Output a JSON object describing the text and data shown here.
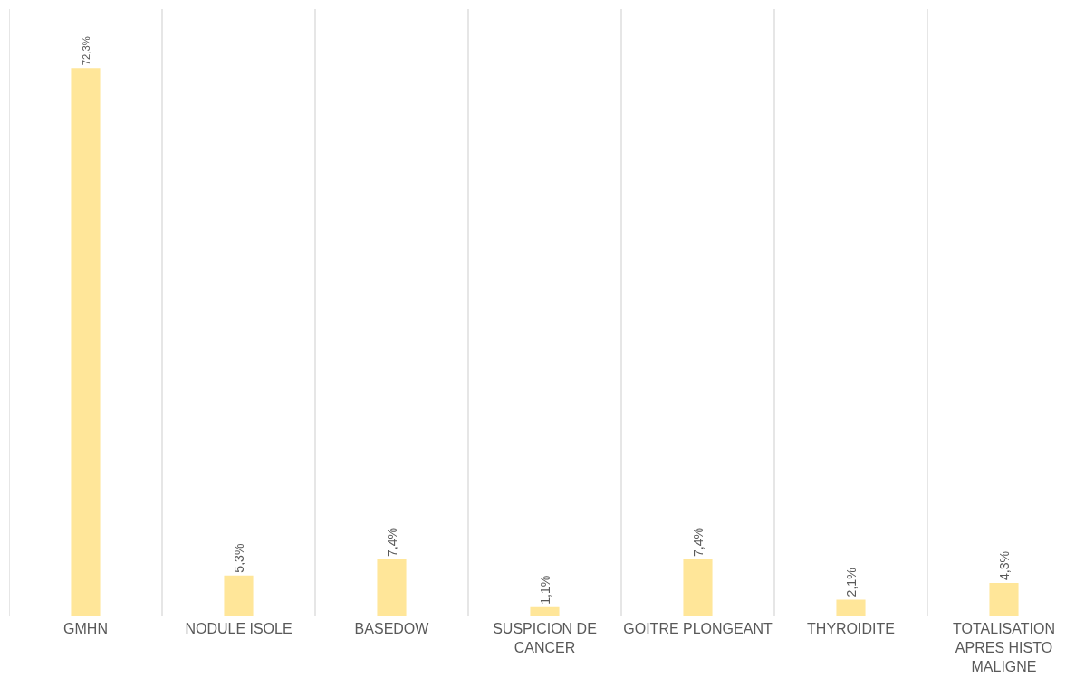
{
  "chart_data": {
    "type": "bar",
    "categories": [
      "GMHN",
      "NODULE ISOLE",
      "BASEDOW",
      "SUSPICION DE CANCER",
      "GOITRE PLONGEANT",
      "THYROIDITE",
      "TOTALISATION APRES HISTO MALIGNE"
    ],
    "values": [
      72.3,
      5.3,
      7.4,
      1.1,
      7.4,
      2.1,
      4.3
    ],
    "value_labels": [
      "72,3%",
      "5,3%",
      "7,4%",
      "1,1%",
      "7,4%",
      "2,1%",
      "4,3%"
    ],
    "color": "#ffe699",
    "grid": "x",
    "legend": false
  }
}
